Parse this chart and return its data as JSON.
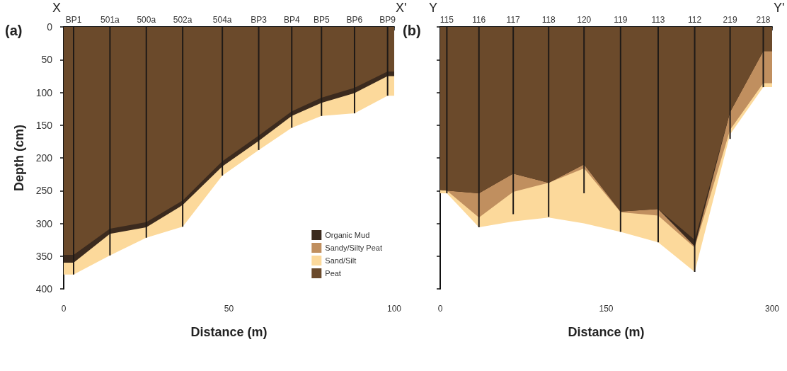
{
  "chart_data": [
    {
      "type": "area",
      "title": "(a)",
      "xlabel": "Distance (m)",
      "ylabel": "Depth (cm)",
      "legend": "bottom right",
      "x": [
        0,
        3,
        14,
        25,
        36,
        48,
        59,
        69,
        78,
        88,
        98,
        100
      ],
      "xlim": [
        0,
        100
      ],
      "xticks": [
        0,
        50,
        100
      ],
      "ylim": [
        400,
        0
      ],
      "yticks": [
        0,
        50,
        100,
        150,
        200,
        250,
        300,
        350,
        400
      ],
      "annotations": [
        "X",
        "X'",
        {
          "text": "BP1",
          "x": 3,
          "y": 0
        },
        {
          "text": "501a",
          "x": 14,
          "y": 0
        },
        {
          "text": "500a",
          "x": 25,
          "y": 0
        },
        {
          "text": "502a",
          "x": 36,
          "y": 0
        },
        {
          "text": "504a",
          "x": 48,
          "y": 0
        },
        {
          "text": "BP3",
          "x": 59,
          "y": 0
        },
        {
          "text": "BP4",
          "x": 69,
          "y": 0
        },
        {
          "text": "BP5",
          "x": 78,
          "y": 0
        },
        {
          "text": "BP6",
          "x": 88,
          "y": 0
        },
        {
          "text": "BP9",
          "x": 98,
          "y": 0
        }
      ],
      "series": [
        {
          "name": "Peat",
          "color": "#6b4a2b",
          "values": [
            348,
            348,
            308,
            298,
            265,
            205,
            166,
            129,
            108,
            93,
            68,
            68
          ]
        },
        {
          "name": "Organic Mud",
          "color": "#3b2a1e",
          "values": [
            360,
            360,
            316,
            306,
            272,
            213,
            174,
            136,
            116,
            101,
            75,
            75
          ]
        },
        {
          "name": "Sandy/Silty Peat",
          "color": "#c08f5f",
          "values": [
            null,
            null,
            null,
            null,
            null,
            null,
            null,
            null,
            null,
            null,
            null,
            null
          ]
        },
        {
          "name": "Sand/Silt",
          "color": "#fcd99b",
          "values": [
            378,
            378,
            349,
            322,
            305,
            227,
            188,
            154,
            136,
            132,
            105,
            105
          ]
        },
        {
          "type": "bar",
          "color": "#1f1a17",
          "x": [
            3,
            14,
            25,
            36,
            48,
            59,
            69,
            78,
            88,
            98
          ],
          "values": [
            378,
            349,
            322,
            305,
            227,
            188,
            154,
            136,
            132,
            105
          ]
        }
      ]
    },
    {
      "type": "area",
      "title": "(b)",
      "xlabel": "Distance (m)",
      "tick_labels": "x",
      "x": [
        0,
        6,
        35,
        66,
        98,
        130,
        163,
        197,
        230,
        262,
        292,
        300
      ],
      "xlim": [
        0,
        300
      ],
      "xticks": [
        0,
        150,
        300
      ],
      "ylim": [
        400,
        0
      ],
      "yticks": [
        0,
        50,
        100,
        150,
        200,
        250,
        300,
        350,
        400
      ],
      "annotations": [
        "Y",
        "Y'",
        {
          "text": "115",
          "x": 6,
          "y": 0
        },
        {
          "text": "116",
          "x": 35,
          "y": 0
        },
        {
          "text": "117",
          "x": 66,
          "y": 0
        },
        {
          "text": "118",
          "x": 98,
          "y": 0
        },
        {
          "text": "120",
          "x": 130,
          "y": 0
        },
        {
          "text": "119",
          "x": 163,
          "y": 0
        },
        {
          "text": "113",
          "x": 197,
          "y": 0
        },
        {
          "text": "112",
          "x": 230,
          "y": 0
        },
        {
          "text": "219",
          "x": 262,
          "y": 0
        },
        {
          "text": "218",
          "x": 292,
          "y": 0
        }
      ],
      "series": [
        {
          "color": "#6b4a2b",
          "values": [
            249,
            250,
            254,
            224,
            238,
            210,
            282,
            278,
            325,
            130,
            37,
            37
          ]
        },
        {
          "color": "#3b2a1e",
          "values": [
            249,
            250,
            254,
            224,
            238,
            210,
            282,
            278,
            335,
            130,
            37,
            37
          ]
        },
        {
          "color": "#c08f5f",
          "values": [
            249,
            250,
            291,
            252,
            238,
            216,
            283,
            288,
            337,
            157,
            86,
            86
          ]
        },
        {
          "color": "#fcd99b",
          "values": [
            254,
            254,
            306,
            297,
            291,
            300,
            313,
            329,
            374,
            164,
            92,
            92
          ]
        },
        {
          "type": "bar",
          "color": "#1f1a17",
          "x": [
            6,
            35,
            66,
            98,
            130,
            163,
            197,
            230,
            262,
            292
          ],
          "values": [
            254,
            306,
            286,
            290,
            254,
            313,
            329,
            374,
            171,
            92
          ]
        }
      ]
    }
  ]
}
